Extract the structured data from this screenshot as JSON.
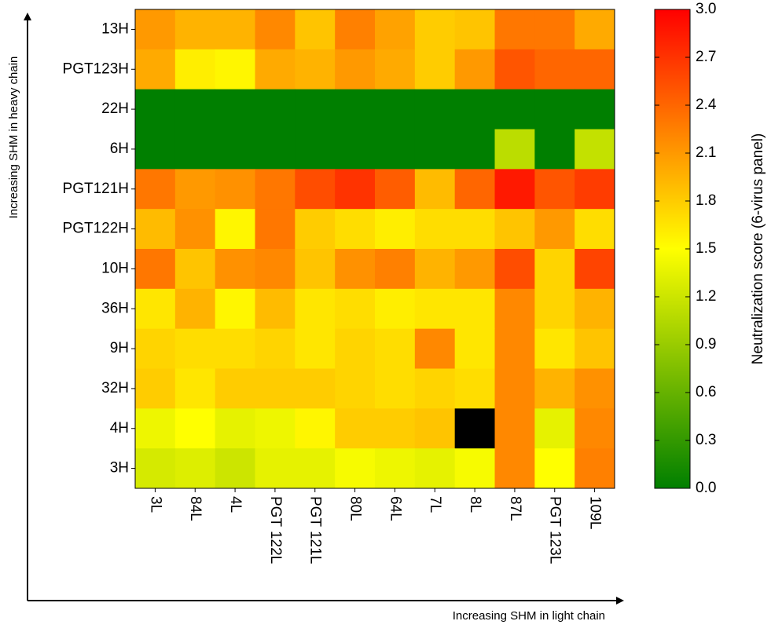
{
  "chart_data": {
    "type": "heatmap",
    "x_label": "Increasing SHM in light chain",
    "y_label": "Increasing SHM in heavy chain",
    "colorbar_label": "Neutralization score (6-virus panel)",
    "x_categories": [
      "3L",
      "84L",
      "4L",
      "PGT 122L",
      "PGT 121L",
      "80L",
      "64L",
      "7L",
      "8L",
      "87L",
      "PGT 123L",
      "109L"
    ],
    "y_categories": [
      "13H",
      "PGT123H",
      "22H",
      "6H",
      "PGT121H",
      "PGT122H",
      "10H",
      "36H",
      "9H",
      "32H",
      "4H",
      "3H"
    ],
    "values": [
      [
        2.1,
        1.95,
        1.95,
        2.2,
        1.85,
        2.25,
        2.05,
        1.8,
        1.85,
        2.3,
        2.3,
        2.0
      ],
      [
        2.0,
        1.6,
        1.55,
        2.0,
        1.95,
        2.1,
        2.0,
        1.8,
        2.1,
        2.5,
        2.4,
        2.4
      ],
      [
        0,
        0,
        0,
        0,
        0,
        0,
        0,
        0,
        0,
        0,
        0,
        0
      ],
      [
        0,
        0,
        0,
        0,
        0,
        0,
        0,
        0,
        0,
        1.1,
        0,
        1.15
      ],
      [
        2.3,
        2.1,
        2.15,
        2.3,
        2.55,
        2.7,
        2.45,
        1.9,
        2.4,
        2.85,
        2.5,
        2.65
      ],
      [
        1.9,
        2.15,
        1.55,
        2.3,
        1.8,
        1.7,
        1.6,
        1.7,
        1.7,
        1.85,
        2.1,
        1.7
      ],
      [
        2.3,
        1.85,
        2.15,
        2.2,
        1.85,
        2.15,
        2.25,
        1.95,
        2.1,
        2.55,
        1.75,
        2.6
      ],
      [
        1.65,
        1.95,
        1.55,
        1.9,
        1.65,
        1.7,
        1.6,
        1.65,
        1.65,
        2.2,
        1.75,
        1.95
      ],
      [
        1.75,
        1.7,
        1.7,
        1.75,
        1.65,
        1.75,
        1.7,
        2.2,
        1.65,
        2.2,
        1.65,
        1.85
      ],
      [
        1.8,
        1.65,
        1.8,
        1.8,
        1.8,
        1.75,
        1.7,
        1.75,
        1.7,
        2.2,
        1.95,
        2.15
      ],
      [
        1.4,
        1.5,
        1.35,
        1.4,
        1.55,
        1.8,
        1.8,
        1.85,
        null,
        2.2,
        1.35,
        2.2
      ],
      [
        1.25,
        1.3,
        1.2,
        1.35,
        1.35,
        1.45,
        1.4,
        1.35,
        1.45,
        2.2,
        1.5,
        2.25
      ]
    ],
    "colormap": [
      "#007f00",
      "#ffff00",
      "#ff0000"
    ],
    "missing_color": "#000000",
    "clim": [
      0,
      3
    ],
    "cticks": [
      {
        "value": 0,
        "label": "0.0"
      },
      0.3,
      0.6,
      0.9,
      1.2,
      1.5,
      1.8,
      2.1,
      2.4,
      2.7,
      {
        "value": 3,
        "label": "3.0"
      }
    ]
  }
}
